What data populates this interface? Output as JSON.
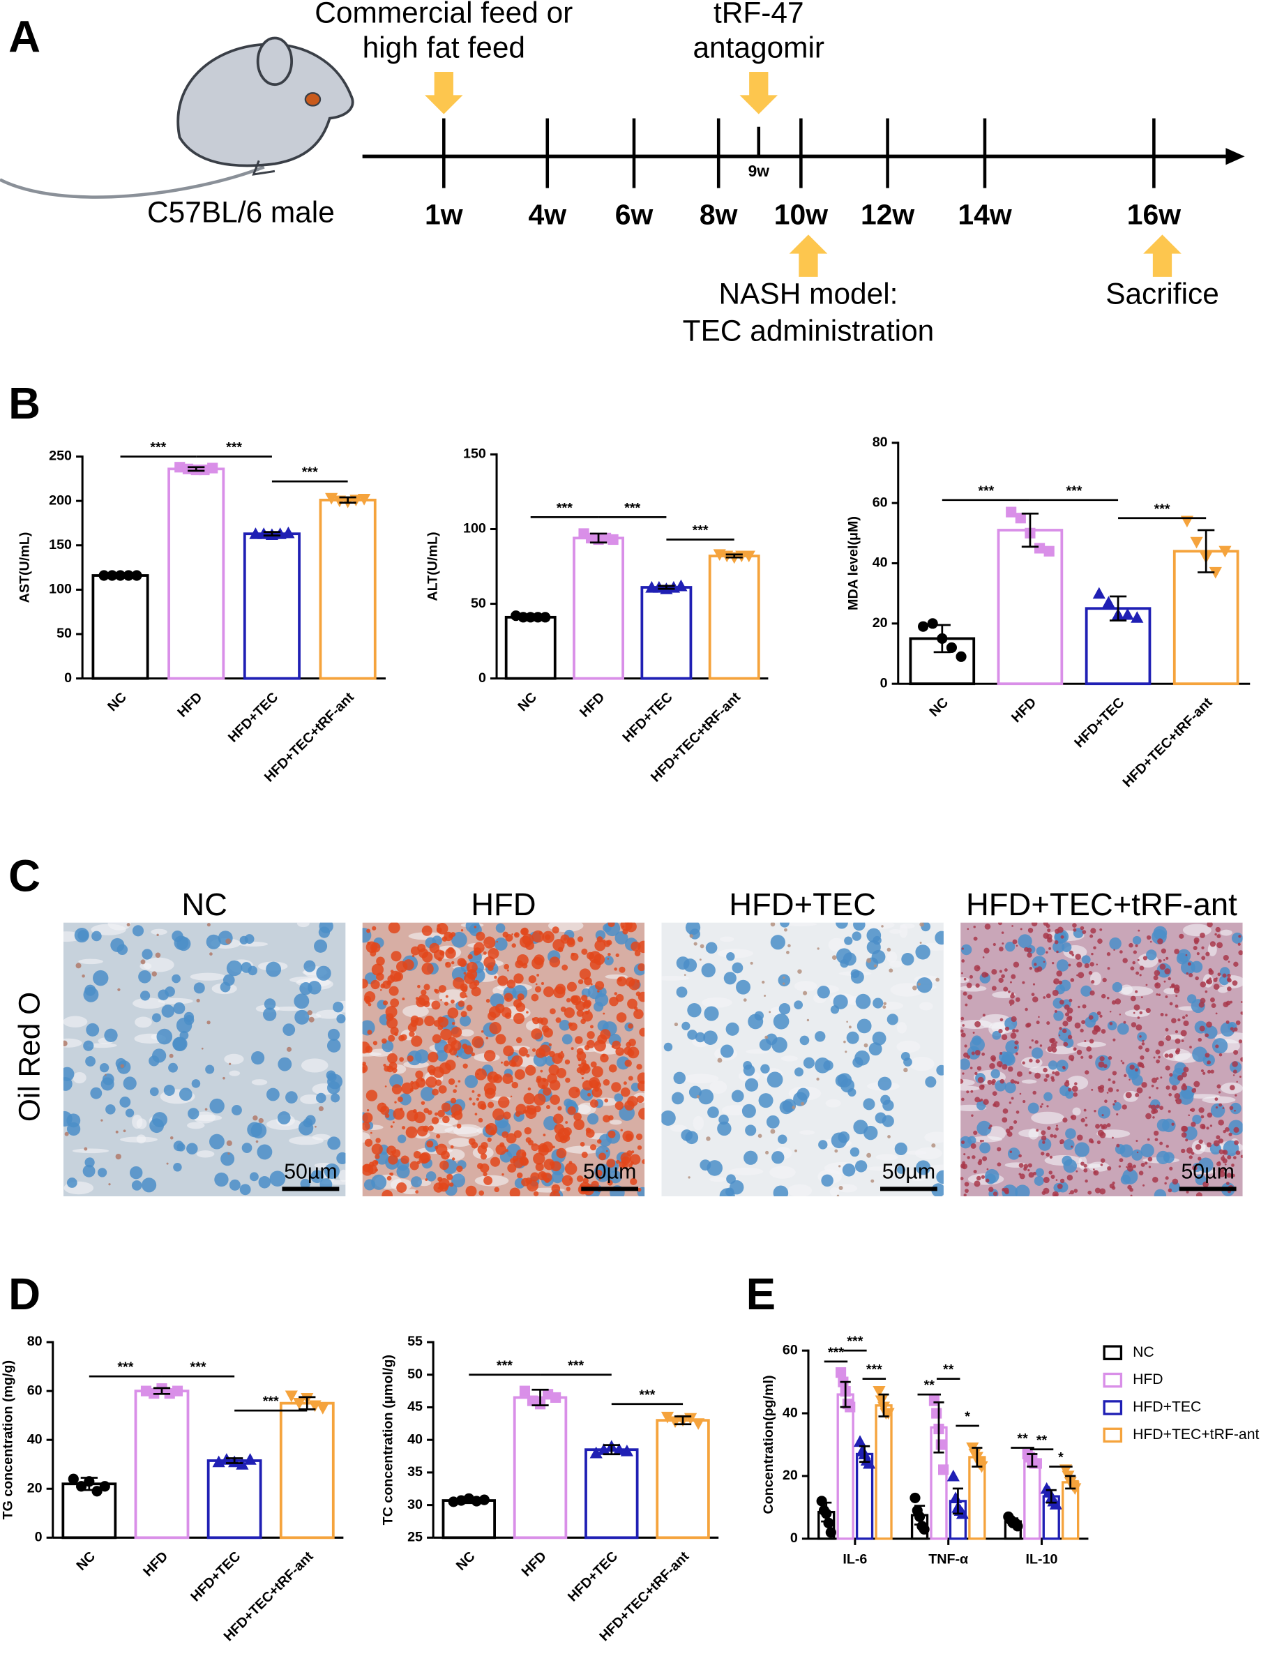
{
  "panel_labels": [
    "A",
    "B",
    "C",
    "D",
    "E"
  ],
  "timeline": {
    "subject": "C57BL/6 male",
    "ticks": [
      "1w",
      "4w",
      "6w",
      "8w",
      "9w",
      "10w",
      "12w",
      "14w",
      "16w"
    ],
    "events": [
      {
        "lines": [
          "Commercial feed or",
          "high fat feed"
        ]
      },
      {
        "lines": [
          "tRF-47",
          "antagomir"
        ]
      },
      {
        "lines": [
          "NASH model:",
          "TEC administration"
        ]
      },
      {
        "lines": [
          "Sacrifice"
        ]
      }
    ]
  },
  "histology": {
    "stain": "Oil Red O",
    "groups": [
      "NC",
      "HFD",
      "HFD+TEC",
      "HFD+TEC+tRF-ant"
    ],
    "scale_bar": "50µm"
  },
  "chart_data": [
    {
      "type": "bar",
      "ylabel": "AST(U/mL)",
      "categories": [
        "NC",
        "HFD",
        "HFD+TEC",
        "HFD+TEC+tRF-ant"
      ],
      "colors": [
        "#000000",
        "#d98fe8",
        "#1f1fb4",
        "#f5a33c"
      ],
      "markers": [
        "circle",
        "square",
        "triangle",
        "triangle-down"
      ],
      "values": [
        116,
        236,
        163,
        201
      ],
      "errors": [
        1,
        2,
        2,
        3
      ],
      "points": [
        [
          116,
          116,
          116,
          116,
          116
        ],
        [
          238,
          236,
          235,
          235,
          237
        ],
        [
          163,
          163,
          162,
          163,
          164
        ],
        [
          203,
          200,
          199,
          201,
          202
        ]
      ],
      "ylim": [
        0,
        250
      ],
      "yticks": [
        0,
        50,
        100,
        150,
        200,
        250
      ],
      "significance": [
        {
          "label": "***",
          "y": 250
        },
        {
          "label": "***",
          "y": 250
        },
        {
          "label": "***",
          "y": 222
        }
      ]
    },
    {
      "type": "bar",
      "ylabel": "ALT(U/mL)",
      "categories": [
        "NC",
        "HFD",
        "HFD+TEC",
        "HFD+TEC+tRF-ant"
      ],
      "colors": [
        "#000000",
        "#d98fe8",
        "#1f1fb4",
        "#f5a33c"
      ],
      "markers": [
        "circle",
        "square",
        "triangle",
        "triangle-down"
      ],
      "values": [
        41,
        94,
        61,
        82
      ],
      "errors": [
        1,
        3,
        1,
        1
      ],
      "points": [
        [
          42,
          41,
          41,
          41,
          41
        ],
        [
          97,
          94,
          93,
          94,
          93
        ],
        [
          61,
          61,
          60,
          61,
          62
        ],
        [
          83,
          82,
          81,
          82,
          82
        ]
      ],
      "ylim": [
        0,
        150
      ],
      "yticks": [
        0,
        50,
        100,
        150
      ],
      "significance": [
        {
          "label": "***",
          "y": 108
        },
        {
          "label": "***",
          "y": 108
        },
        {
          "label": "***",
          "y": 93
        }
      ]
    },
    {
      "type": "bar",
      "ylabel": "MDA level(μM)",
      "categories": [
        "NC",
        "HFD",
        "HFD+TEC",
        "HFD+TEC+tRF-ant"
      ],
      "colors": [
        "#000000",
        "#d98fe8",
        "#1f1fb4",
        "#f5a33c"
      ],
      "markers": [
        "circle",
        "square",
        "triangle",
        "triangle-down"
      ],
      "values": [
        15,
        51,
        25,
        44
      ],
      "errors": [
        4.5,
        5.5,
        4,
        7
      ],
      "points": [
        [
          19,
          20,
          15,
          12,
          9
        ],
        [
          57,
          55,
          50,
          45,
          44
        ],
        [
          30,
          27,
          23,
          23,
          22
        ],
        [
          54,
          47,
          42,
          37,
          44
        ]
      ],
      "ylim": [
        0,
        80
      ],
      "yticks": [
        0,
        20,
        40,
        60,
        80
      ],
      "significance": [
        {
          "label": "***",
          "y": 61
        },
        {
          "label": "***",
          "y": 61
        },
        {
          "label": "***",
          "y": 55
        }
      ]
    },
    {
      "type": "bar",
      "ylabel": "TG concentration (mg/g)",
      "categories": [
        "NC",
        "HFD",
        "HFD+TEC",
        "HFD+TEC+tRF-ant"
      ],
      "colors": [
        "#000000",
        "#d98fe8",
        "#1f1fb4",
        "#f5a33c"
      ],
      "markers": [
        "circle",
        "square",
        "triangle",
        "triangle-down"
      ],
      "values": [
        22,
        60,
        31.5,
        55
      ],
      "errors": [
        2.5,
        1.2,
        1,
        2.5
      ],
      "points": [
        [
          24,
          21,
          23,
          19,
          21
        ],
        [
          60,
          59,
          61,
          59,
          60
        ],
        [
          31,
          32,
          31,
          30,
          32
        ],
        [
          58,
          55,
          57,
          54,
          53
        ]
      ],
      "ylim": [
        0,
        80
      ],
      "yticks": [
        0,
        20,
        40,
        60,
        80
      ],
      "significance": [
        {
          "label": "***",
          "y": 66
        },
        {
          "label": "***",
          "y": 66
        },
        {
          "label": "***",
          "y": 52
        }
      ]
    },
    {
      "type": "bar",
      "ylabel": "TC concentration (µmol/g)",
      "categories": [
        "NC",
        "HFD",
        "HFD+TEC",
        "HFD+TEC+tRF-ant"
      ],
      "colors": [
        "#000000",
        "#d98fe8",
        "#1f1fb4",
        "#f5a33c"
      ],
      "markers": [
        "circle",
        "square",
        "triangle",
        "triangle-down"
      ],
      "values": [
        30.7,
        46.5,
        38.5,
        43
      ],
      "errors": [
        0.4,
        1.2,
        0.7,
        0.6
      ],
      "points": [
        [
          30.5,
          30.7,
          31,
          30.6,
          30.8
        ],
        [
          47.5,
          46,
          45.5,
          47,
          46.5
        ],
        [
          38,
          38.5,
          39,
          38.5,
          38.3
        ],
        [
          43.5,
          42.8,
          43,
          43.3,
          42.5
        ]
      ],
      "ylim": [
        25,
        55
      ],
      "yticks": [
        25,
        30,
        35,
        40,
        45,
        50,
        55
      ],
      "significance": [
        {
          "label": "***",
          "y": 50
        },
        {
          "label": "***",
          "y": 50
        },
        {
          "label": "***",
          "y": 45.5
        }
      ]
    },
    {
      "type": "grouped-bar",
      "ylabel": "Concentration(pg/ml)",
      "categories": [
        "IL-6",
        "TNF-α",
        "IL-10"
      ],
      "series": [
        {
          "name": "NC",
          "color": "#000000",
          "marker": "circle",
          "values": [
            8.5,
            7.5,
            5.5
          ],
          "errors": [
            3,
            3,
            1
          ],
          "points": [
            [
              12,
              9,
              8,
              5,
              2
            ],
            [
              13,
              9,
              7,
              4,
              3
            ],
            [
              7,
              6,
              5,
              5,
              4
            ]
          ]
        },
        {
          "name": "HFD",
          "color": "#d98fe8",
          "marker": "square",
          "values": [
            46,
            35.5,
            25
          ],
          "errors": [
            4,
            8,
            2
          ],
          "points": [
            [
              53,
              50,
              47,
              43,
              42
            ],
            [
              44,
              40,
              35,
              30,
              22
            ],
            [
              27,
              26,
              25,
              24,
              24
            ]
          ]
        },
        {
          "name": "HFD+TEC",
          "color": "#1f1fb4",
          "marker": "triangle",
          "values": [
            27,
            12,
            13.5
          ],
          "errors": [
            2.5,
            4,
            2
          ],
          "points": [
            [
              31,
              28,
              27,
              25,
              24
            ],
            [
              20,
              13,
              10,
              9,
              8
            ],
            [
              16,
              15,
              13,
              12,
              11
            ]
          ]
        },
        {
          "name": "HFD+TEC+tRF-ant",
          "color": "#f5a33c",
          "marker": "triangle-down",
          "values": [
            42.5,
            26,
            18
          ],
          "errors": [
            3.5,
            3,
            2
          ],
          "points": [
            [
              47,
              44,
              42,
              40,
              40
            ],
            [
              29,
              27,
              26,
              24,
              23
            ],
            [
              22,
              20,
              18,
              17,
              16
            ]
          ]
        }
      ],
      "ylim": [
        0,
        60
      ],
      "yticks": [
        0,
        20,
        40,
        60
      ],
      "significance": [
        [
          {
            "label": "***",
            "y": 56.5
          },
          {
            "label": "***",
            "y": 60
          },
          {
            "label": "***",
            "y": 51
          }
        ],
        [
          {
            "label": "**",
            "y": 46
          },
          {
            "label": "**",
            "y": 51
          },
          {
            "label": "*",
            "y": 36
          }
        ],
        [
          {
            "label": "**",
            "y": 29
          },
          {
            "label": "**",
            "y": 28.5
          },
          {
            "label": "*",
            "y": 23
          }
        ]
      ]
    }
  ]
}
